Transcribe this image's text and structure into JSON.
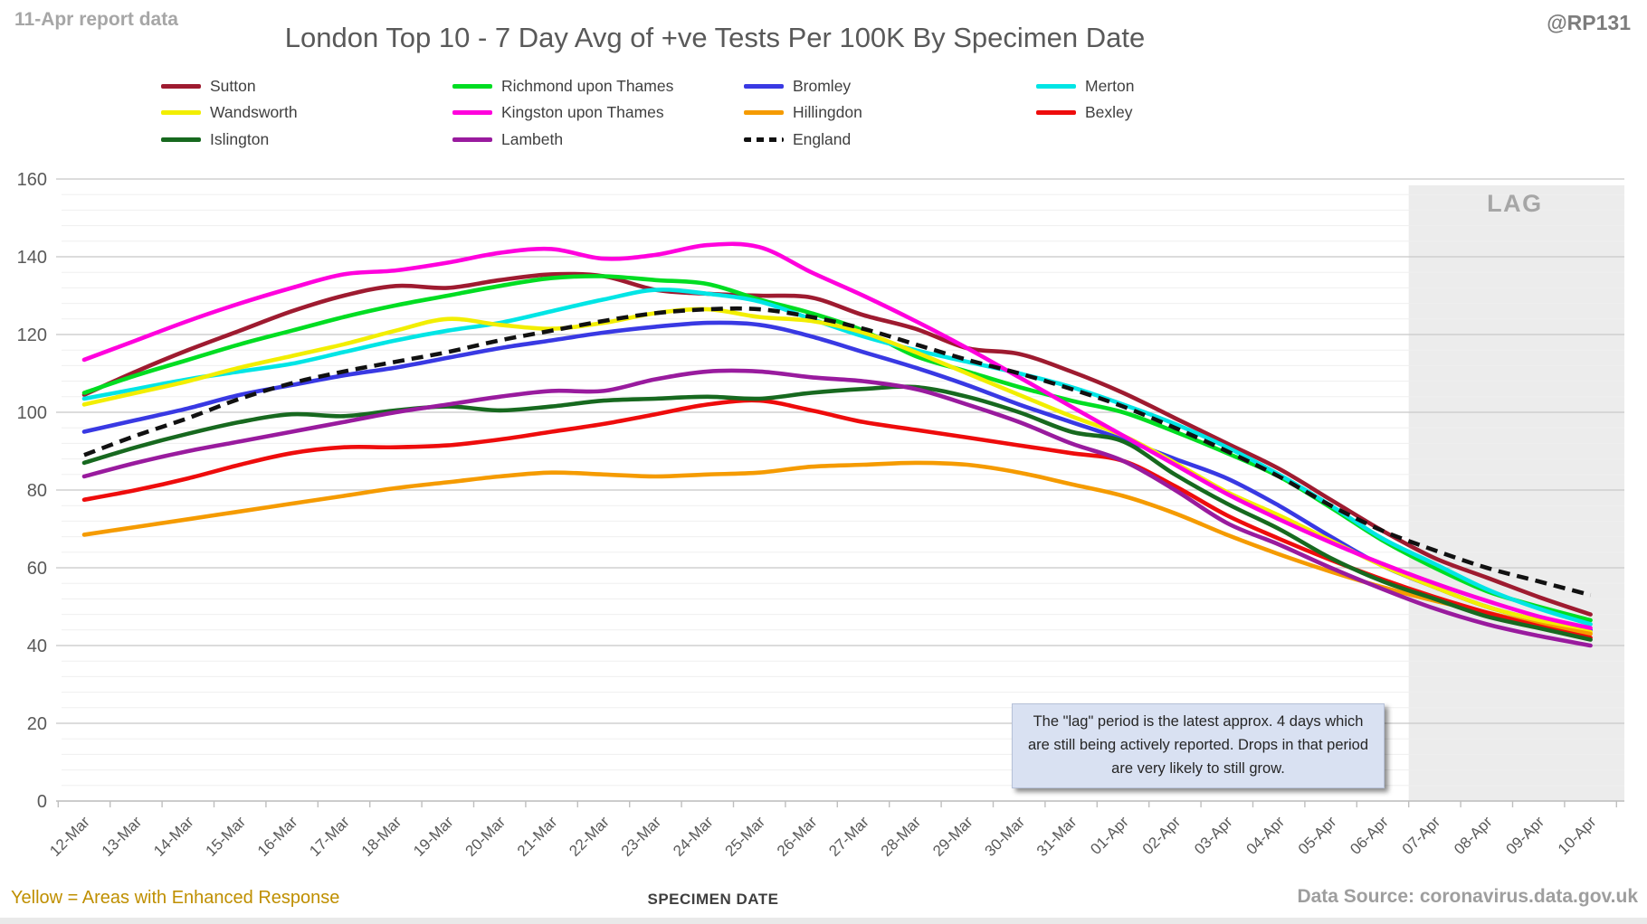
{
  "header": {
    "report_note": "11-Apr report data",
    "title": "London Top 10 - 7 Day Avg of +ve Tests Per 100K By Specimen Date",
    "handle": "@RP131"
  },
  "annotation": {
    "lag_label": "LAG",
    "lag_note": "The \"lag\" period is the latest approx. 4 days which are still being actively reported. Drops in that period are very likely to still grow."
  },
  "footer": {
    "note": "Yellow = Areas with Enhanced Response",
    "xlabel": "SPECIMEN DATE",
    "source": "Data Source: coronavirus.data.gov.uk"
  },
  "chart_data": {
    "type": "line",
    "title": "London Top 10 - 7 Day Avg of +ve Tests Per 100K By Specimen Date",
    "xlabel": "SPECIMEN DATE",
    "ylabel": "",
    "ylim": [
      0,
      160
    ],
    "ytick_step": 20,
    "minor_grid_step": 4,
    "grid": "on",
    "legend_position": "top",
    "lag_region_start_category": "07-Apr",
    "categories": [
      "12-Mar",
      "13-Mar",
      "14-Mar",
      "15-Mar",
      "16-Mar",
      "17-Mar",
      "18-Mar",
      "19-Mar",
      "20-Mar",
      "21-Mar",
      "22-Mar",
      "23-Mar",
      "24-Mar",
      "25-Mar",
      "26-Mar",
      "27-Mar",
      "28-Mar",
      "29-Mar",
      "30-Mar",
      "31-Mar",
      "01-Apr",
      "02-Apr",
      "03-Apr",
      "04-Apr",
      "05-Apr",
      "06-Apr",
      "07-Apr",
      "08-Apr",
      "09-Apr",
      "10-Apr"
    ],
    "series": [
      {
        "name": "Sutton",
        "color": "#9e1b30",
        "dashed": false,
        "values": [
          104.5,
          110.5,
          116,
          121,
          126,
          130,
          132.5,
          132,
          134,
          135.5,
          135,
          131.5,
          130.5,
          130,
          129.5,
          125,
          121.5,
          116.5,
          115,
          110.5,
          105,
          98.5,
          92,
          85.5,
          77.5,
          69.5,
          62.5,
          57.5,
          52.5,
          48
        ]
      },
      {
        "name": "Richmond upon Thames",
        "color": "#00dd22",
        "dashed": false,
        "values": [
          105,
          109.5,
          113.5,
          117.5,
          121,
          124.5,
          127.5,
          130,
          132.5,
          134.5,
          135,
          134,
          133,
          129,
          125.5,
          121,
          114.5,
          110.5,
          106.5,
          103,
          100,
          95,
          89.5,
          83.5,
          75.5,
          67,
          60,
          54,
          50,
          46.5
        ]
      },
      {
        "name": "Bromley",
        "color": "#3939e3",
        "dashed": false,
        "values": [
          95,
          98,
          101,
          104.5,
          107,
          109.5,
          111.5,
          114,
          116.5,
          118.5,
          120.5,
          122,
          123,
          122.5,
          119.5,
          115.5,
          111.5,
          107,
          102,
          97.5,
          93,
          88,
          83,
          76,
          68,
          60.5,
          55,
          50,
          46.5,
          44
        ]
      },
      {
        "name": "Merton",
        "color": "#00e5e5",
        "dashed": false,
        "values": [
          103.5,
          106,
          108.5,
          110.5,
          112.5,
          115.5,
          118.5,
          121,
          123,
          126,
          129,
          131.5,
          130.5,
          128.5,
          124,
          119.5,
          116,
          113,
          110,
          106.5,
          102,
          97,
          91,
          84,
          76,
          67.5,
          61,
          54.5,
          49.5,
          45.5
        ]
      },
      {
        "name": "Wandsworth",
        "color": "#f2ee00",
        "dashed": false,
        "values": [
          102,
          105,
          108,
          111.5,
          114.5,
          117.5,
          121,
          124,
          122.5,
          121.5,
          123,
          125.5,
          126.5,
          124.5,
          123.5,
          120.5,
          115.5,
          110,
          104.5,
          99,
          94,
          87,
          79.5,
          73.5,
          67,
          60.5,
          55,
          50,
          46.5,
          43.5
        ]
      },
      {
        "name": "Kingston upon Thames",
        "color": "#ff00dd",
        "dashed": false,
        "values": [
          113.5,
          118.5,
          123.5,
          128,
          132,
          135.5,
          136.5,
          138.5,
          141,
          142,
          139.5,
          140.5,
          143,
          142.5,
          136,
          130,
          123.5,
          116.5,
          109,
          101.5,
          94,
          86.5,
          79,
          72.5,
          66.5,
          61,
          56,
          51.5,
          47.5,
          44.5
        ]
      },
      {
        "name": "Hillingdon",
        "color": "#f59b00",
        "dashed": false,
        "values": [
          68.5,
          70.5,
          72.5,
          74.5,
          76.5,
          78.5,
          80.5,
          82,
          83.5,
          84.5,
          84,
          83.5,
          84,
          84.5,
          86,
          86.5,
          87,
          86.5,
          84.5,
          81.5,
          78.5,
          74,
          68.5,
          63.5,
          59,
          55,
          51.5,
          48.5,
          45.5,
          43
        ]
      },
      {
        "name": "Bexley",
        "color": "#ee0c0c",
        "dashed": false,
        "values": [
          77.5,
          80,
          83,
          86.5,
          89.5,
          91,
          91,
          91.5,
          93,
          95,
          97,
          99.5,
          102,
          103,
          100.5,
          97.5,
          95.5,
          93.5,
          91.5,
          89.5,
          87.5,
          81,
          73.5,
          67.5,
          62,
          57,
          52.5,
          48.5,
          45,
          42
        ]
      },
      {
        "name": "Islington",
        "color": "#17691f",
        "dashed": false,
        "values": [
          87,
          91,
          94.5,
          97.5,
          99.5,
          99,
          100.5,
          101.5,
          100.5,
          101.5,
          103,
          103.5,
          104,
          103.5,
          105,
          106,
          106.5,
          104,
          100,
          95,
          92.5,
          84,
          76.5,
          70,
          62.5,
          56.5,
          52,
          47.5,
          44.5,
          41.5
        ]
      },
      {
        "name": "Lambeth",
        "color": "#991b9e",
        "dashed": false,
        "values": [
          83.5,
          87,
          90,
          92.5,
          95,
          97.5,
          100,
          102,
          104,
          105.5,
          105.5,
          108.5,
          110.5,
          110.5,
          109,
          108,
          106,
          102,
          97.5,
          92,
          87.5,
          80,
          71.5,
          66,
          60,
          54.5,
          49.5,
          45.5,
          42.5,
          40
        ]
      },
      {
        "name": "England",
        "color": "#111111",
        "dashed": true,
        "values": [
          89,
          94,
          98.5,
          103.5,
          107.5,
          110.5,
          113,
          115.5,
          118.5,
          121,
          123.5,
          125.5,
          126.5,
          126.5,
          124.5,
          121.5,
          117.5,
          113.5,
          110,
          106,
          101.5,
          96,
          90,
          83.5,
          76,
          69.5,
          64.5,
          60,
          56.5,
          53
        ]
      }
    ]
  }
}
